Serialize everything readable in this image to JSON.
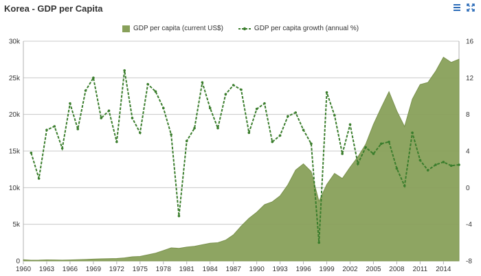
{
  "header": {
    "title": "Korea - GDP per Capita",
    "menu_icon": "hamburger-menu-icon",
    "expand_icon": "expand-fullscreen-icon",
    "accent_color": "#2a6bb8"
  },
  "chart_data": {
    "type": "area",
    "title": "Korea - GDP per Capita",
    "x": [
      1960,
      1961,
      1962,
      1963,
      1964,
      1965,
      1966,
      1967,
      1968,
      1969,
      1970,
      1971,
      1972,
      1973,
      1974,
      1975,
      1976,
      1977,
      1978,
      1979,
      1980,
      1981,
      1982,
      1983,
      1984,
      1985,
      1986,
      1987,
      1988,
      1989,
      1990,
      1991,
      1992,
      1993,
      1994,
      1995,
      1996,
      1997,
      1998,
      1999,
      2000,
      2001,
      2002,
      2003,
      2004,
      2005,
      2006,
      2007,
      2008,
      2009,
      2010,
      2011,
      2012,
      2013,
      2014,
      2015,
      2016
    ],
    "x_tick_labels": [
      "1960",
      "1963",
      "1966",
      "1969",
      "1972",
      "1975",
      "1978",
      "1981",
      "1984",
      "1987",
      "1990",
      "1993",
      "1996",
      "1999",
      "2002",
      "2005",
      "2008",
      "2011",
      "2014"
    ],
    "series": [
      {
        "name": "GDP per capita (current US$)",
        "axis": "left",
        "type": "area",
        "color": "#88a05a",
        "values": [
          158,
          93,
          106,
          146,
          124,
          108,
          133,
          161,
          198,
          243,
          279,
          301,
          323,
          406,
          563,
          615,
          831,
          1052,
          1405,
          1784,
          1715,
          1883,
          1993,
          2199,
          2413,
          2482,
          2835,
          3555,
          4748,
          5817,
          6642,
          7677,
          8067,
          8877,
          10385,
          12404,
          13254,
          12197,
          8134,
          10432,
          11948,
          11253,
          12789,
          14209,
          15908,
          18640,
          20917,
          23102,
          20475,
          18339,
          22087,
          24080,
          24359,
          25891,
          27811,
          27105,
          27539
        ]
      },
      {
        "name": "GDP per capita growth (annual %)",
        "axis": "right",
        "type": "line",
        "style": "dashed",
        "color": "#3a7d2c",
        "values": [
          null,
          3.8,
          1.0,
          6.3,
          6.7,
          4.3,
          9.2,
          6.4,
          10.6,
          12.0,
          7.6,
          8.4,
          5.0,
          12.8,
          7.6,
          6.0,
          11.3,
          10.5,
          8.7,
          5.8,
          -3.1,
          5.1,
          6.5,
          11.5,
          8.7,
          6.5,
          10.2,
          11.2,
          10.7,
          6.0,
          8.6,
          9.2,
          5.0,
          5.7,
          7.8,
          8.2,
          6.3,
          4.8,
          -6.0,
          10.4,
          7.9,
          3.7,
          6.9,
          2.6,
          4.4,
          3.7,
          4.8,
          5.0,
          2.1,
          0.2,
          6.0,
          3.0,
          1.9,
          2.5,
          2.8,
          2.4,
          2.5
        ]
      }
    ],
    "y_left": {
      "ylim": [
        0,
        30000
      ],
      "tick_labels": [
        "0",
        "5k",
        "10k",
        "15k",
        "20k",
        "25k",
        "30k"
      ]
    },
    "y_right": {
      "ylim": [
        -8,
        16
      ],
      "tick_labels": [
        "-8",
        "-4",
        "0",
        "4",
        "8",
        "12",
        "16"
      ]
    },
    "xlim": [
      1960,
      2016
    ],
    "grid": true,
    "legend_position": "top-center"
  }
}
